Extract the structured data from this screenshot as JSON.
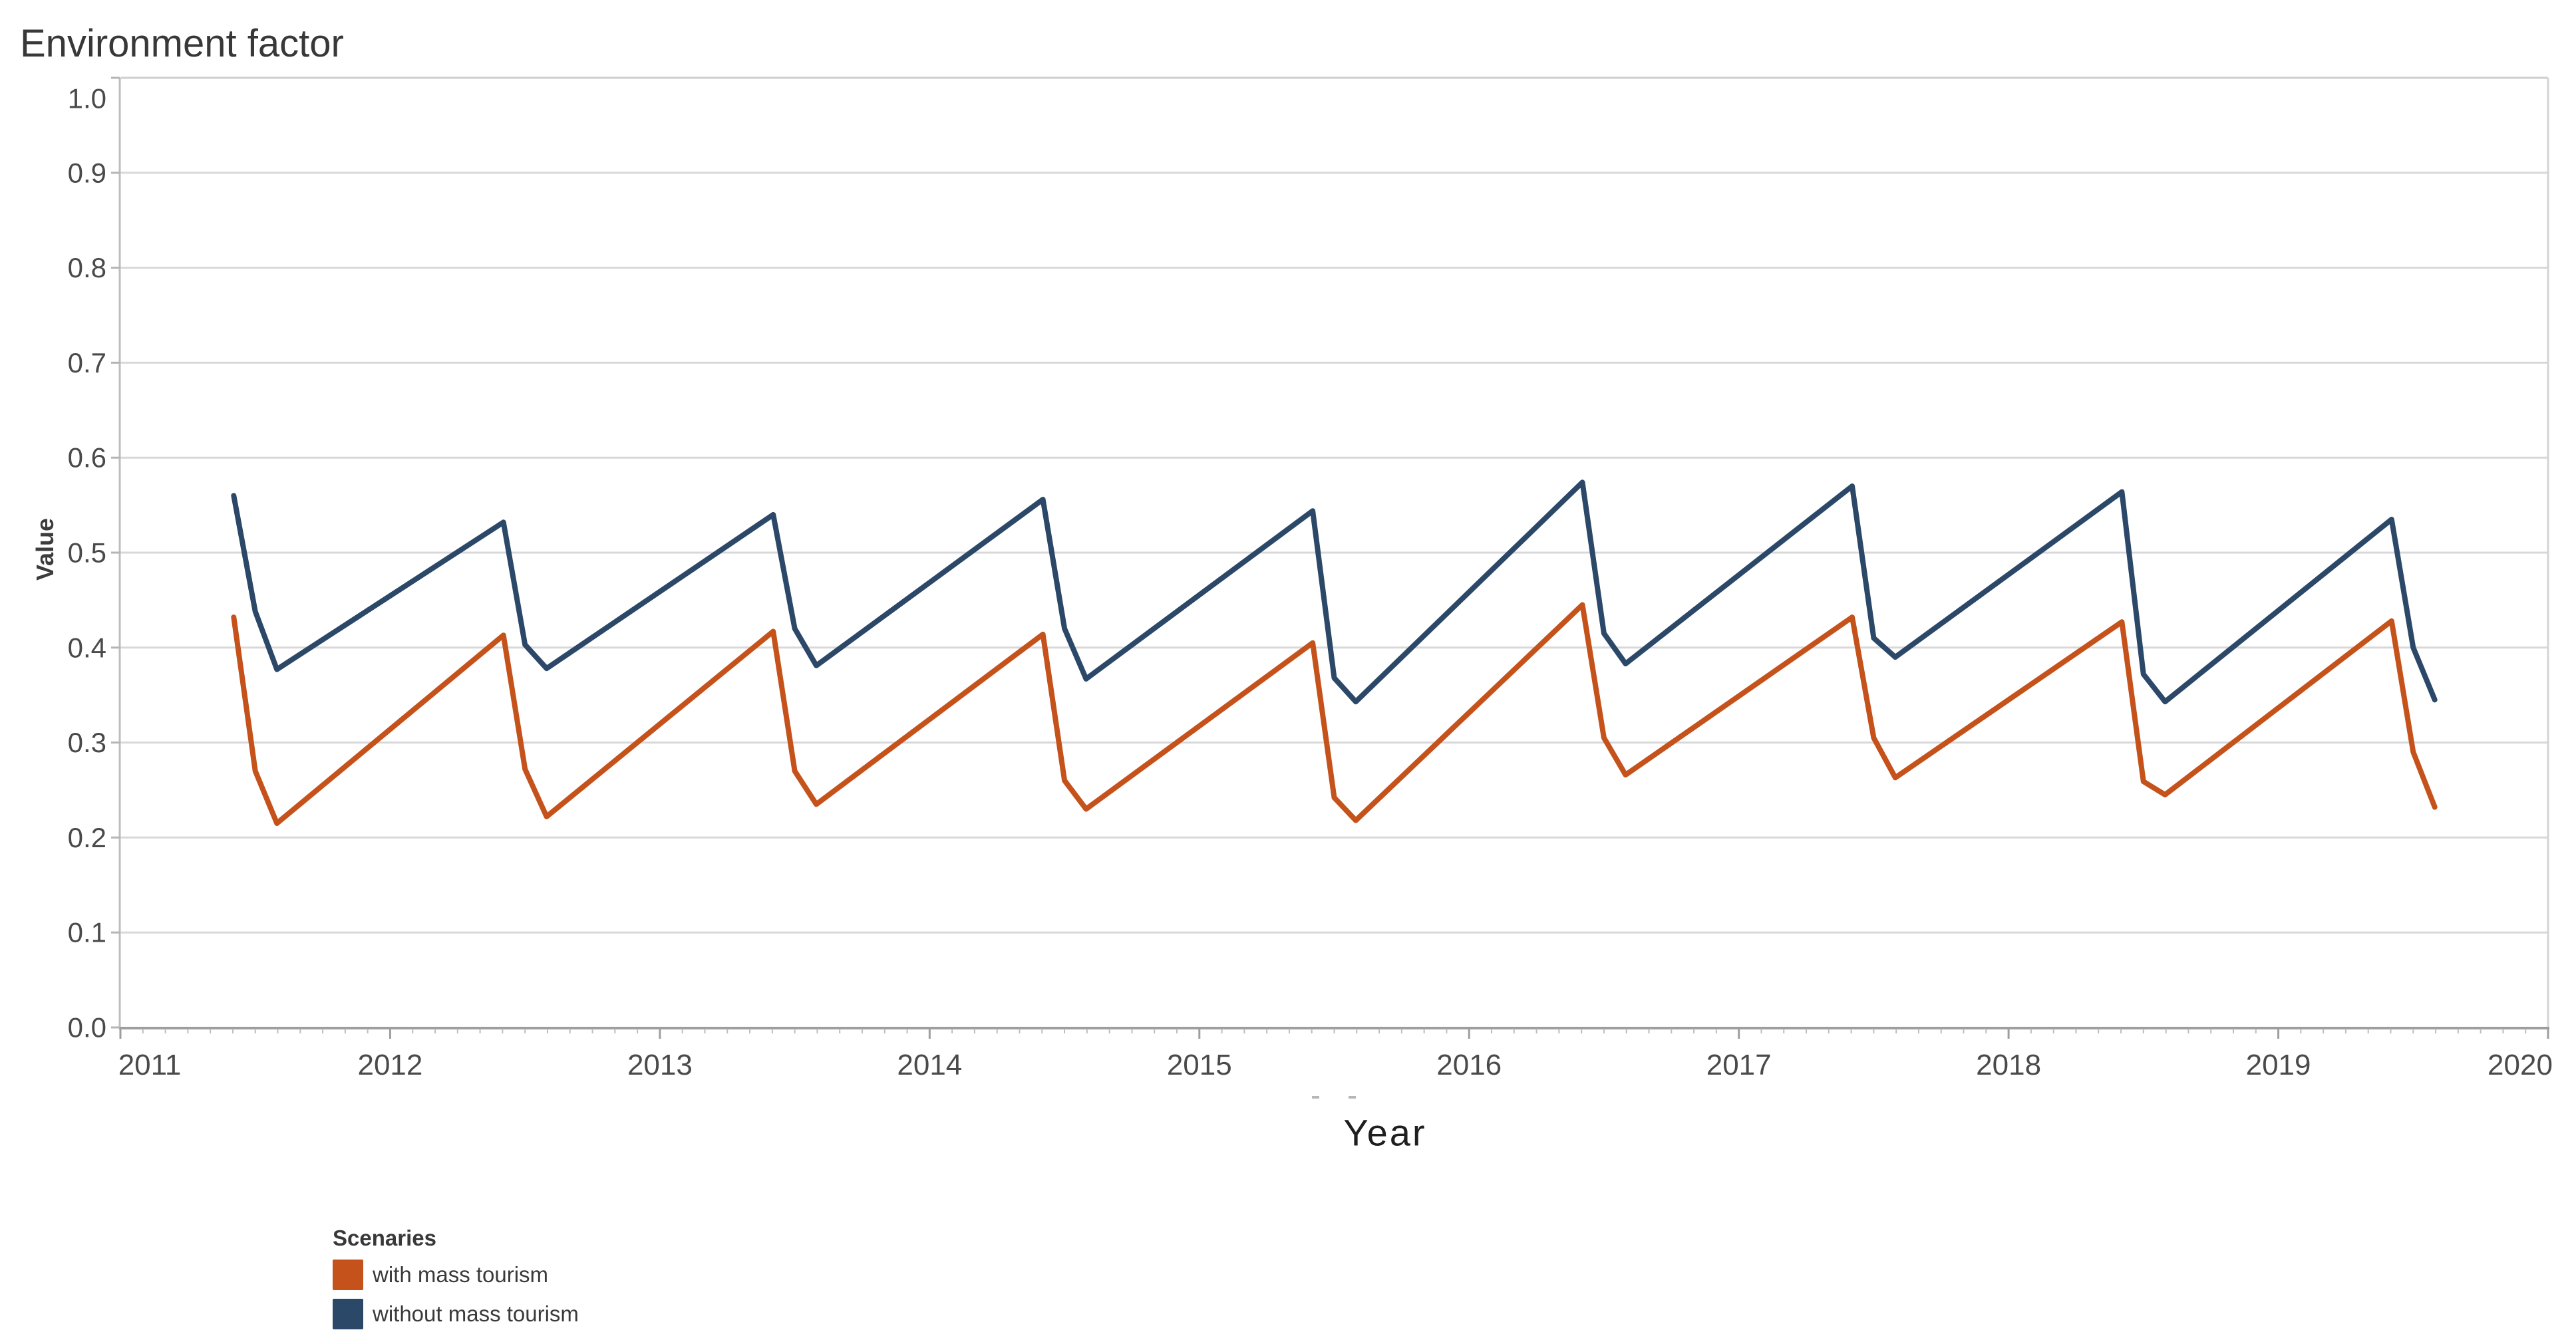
{
  "title": "Environment factor",
  "y_axis": {
    "label": "Value",
    "ticks": [
      "1.0",
      "0.9",
      "0.8",
      "0.7",
      "0.6",
      "0.5",
      "0.4",
      "0.3",
      "0.2",
      "0.1",
      "0.0"
    ]
  },
  "x_axis": {
    "label": "Year",
    "ticks": [
      "2011",
      "2012",
      "2013",
      "2014",
      "2015",
      "2016",
      "2017",
      "2018",
      "2019",
      "2020"
    ]
  },
  "legend": {
    "title": "Scenaries",
    "items": [
      {
        "label": "with mass tourism",
        "color": "#c5521b"
      },
      {
        "label": "without mass tourism",
        "color": "#2c4868"
      }
    ]
  },
  "colors": {
    "with_mass_tourism": "#c5521b",
    "without_mass_tourism": "#2c4868",
    "gridline": "#d8d8da",
    "axis": "#9e9e9e",
    "tick_label": "#4a4a4a"
  },
  "chart_data": {
    "type": "line",
    "title": "Environment factor",
    "xlabel": "Year",
    "ylabel": "Value",
    "xlim": [
      2011,
      2020
    ],
    "ylim": [
      0.0,
      1.0
    ],
    "y_tick_step": 0.1,
    "grid": true,
    "legend_title": "Scenaries",
    "legend_position": "bottom-left",
    "x_unit": "decimal year; monthly sawtooth cycles with peaks each June (~.42) and troughs each August (~.58)",
    "series": [
      {
        "id": "with-mass-tourism",
        "name": "with mass tourism",
        "color": "#c5521b",
        "points": [
          [
            2011.42,
            0.432
          ],
          [
            2011.5,
            0.27
          ],
          [
            2011.58,
            0.215
          ],
          [
            2012.42,
            0.413
          ],
          [
            2012.5,
            0.272
          ],
          [
            2012.58,
            0.222
          ],
          [
            2013.42,
            0.417
          ],
          [
            2013.5,
            0.27
          ],
          [
            2013.58,
            0.235
          ],
          [
            2014.42,
            0.414
          ],
          [
            2014.5,
            0.26
          ],
          [
            2014.58,
            0.23
          ],
          [
            2015.42,
            0.405
          ],
          [
            2015.5,
            0.242
          ],
          [
            2015.58,
            0.218
          ],
          [
            2016.42,
            0.445
          ],
          [
            2016.5,
            0.305
          ],
          [
            2016.58,
            0.266
          ],
          [
            2017.42,
            0.432
          ],
          [
            2017.5,
            0.305
          ],
          [
            2017.58,
            0.263
          ],
          [
            2018.42,
            0.427
          ],
          [
            2018.5,
            0.259
          ],
          [
            2018.58,
            0.245
          ],
          [
            2019.42,
            0.428
          ],
          [
            2019.5,
            0.29
          ],
          [
            2019.58,
            0.232
          ]
        ]
      },
      {
        "id": "without-mass-tourism",
        "name": "without mass tourism",
        "color": "#2c4868",
        "points": [
          [
            2011.42,
            0.56
          ],
          [
            2011.5,
            0.438
          ],
          [
            2011.58,
            0.377
          ],
          [
            2012.42,
            0.532
          ],
          [
            2012.5,
            0.403
          ],
          [
            2012.58,
            0.378
          ],
          [
            2013.42,
            0.54
          ],
          [
            2013.5,
            0.42
          ],
          [
            2013.58,
            0.381
          ],
          [
            2014.42,
            0.556
          ],
          [
            2014.5,
            0.42
          ],
          [
            2014.58,
            0.367
          ],
          [
            2015.42,
            0.544
          ],
          [
            2015.5,
            0.368
          ],
          [
            2015.58,
            0.343
          ],
          [
            2016.42,
            0.574
          ],
          [
            2016.5,
            0.415
          ],
          [
            2016.58,
            0.383
          ],
          [
            2017.42,
            0.57
          ],
          [
            2017.5,
            0.41
          ],
          [
            2017.58,
            0.39
          ],
          [
            2018.42,
            0.564
          ],
          [
            2018.5,
            0.372
          ],
          [
            2018.58,
            0.343
          ],
          [
            2019.42,
            0.535
          ],
          [
            2019.5,
            0.4
          ],
          [
            2019.58,
            0.345
          ]
        ]
      }
    ]
  }
}
